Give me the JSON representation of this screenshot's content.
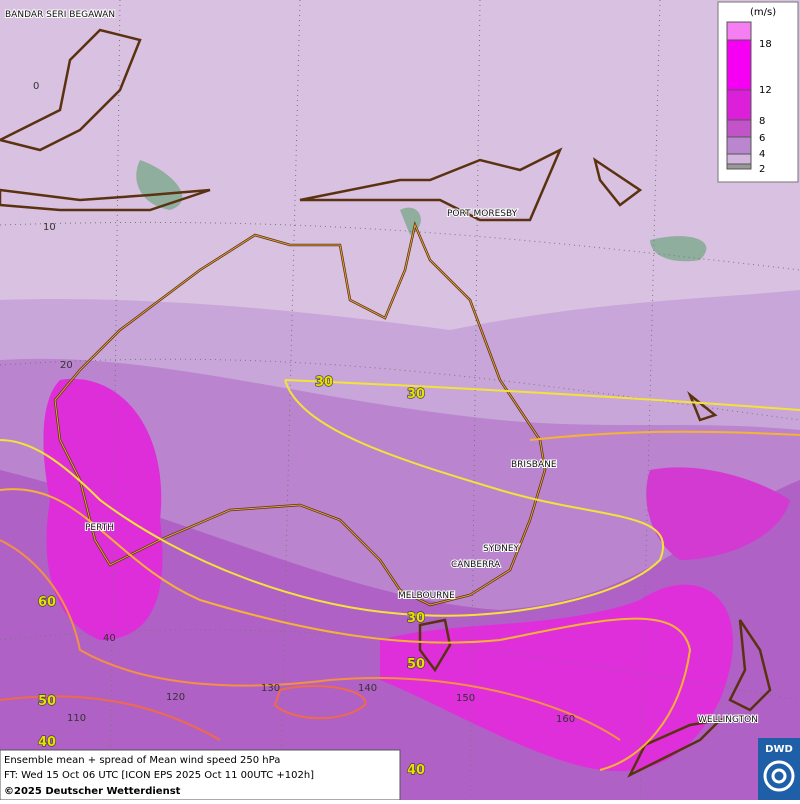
{
  "map": {
    "cities": [
      "BANDAR SERI BEGAWAN",
      "PORT MORESBY",
      "BRISBANE",
      "PERTH",
      "SYDNEY",
      "CANBERRA",
      "MELBOURNE",
      "WELLINGTON"
    ],
    "grid_labels": [
      0,
      10,
      20,
      40,
      110,
      120,
      130,
      140,
      150,
      160
    ],
    "contour_labels": [
      30,
      30,
      30,
      50,
      60,
      50,
      40,
      40
    ]
  },
  "legend": {
    "unit": "(m/s)",
    "levels": [
      18,
      12,
      8,
      6,
      4,
      2
    ]
  },
  "footer": {
    "line1": "Ensemble mean + spread of Mean wind speed 250 hPa",
    "line2": "FT: Wed 15 Oct 06 UTC [ICON EPS 2025 Oct 11 00UTC +102h]",
    "line3": "©2025 Deutscher Wetterdienst"
  },
  "logo": "DWD"
}
